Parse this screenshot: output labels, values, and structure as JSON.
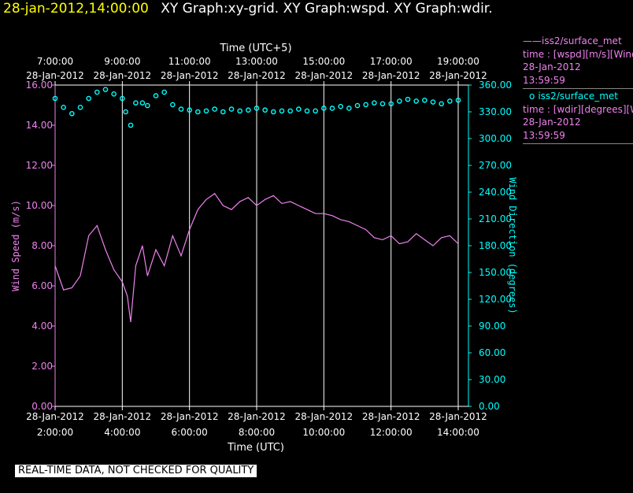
{
  "header": {
    "date": "28-jan-2012,14:00:00",
    "graphs": "XY Graph:xy-grid.  XY Graph:wspd.  XY Graph:wdir."
  },
  "legend": [
    {
      "marker": "——",
      "name": "iss2/surface_met",
      "desc": "time : [wspd][m/s][Wind",
      "date": "28-Jan-2012",
      "time": "13:59:59",
      "color": "#ee82ee"
    },
    {
      "marker": "o",
      "name": "iss2/surface_met",
      "desc": "time : [wdir][degrees][W",
      "date": "28-Jan-2012",
      "time": "13:59:59",
      "color": "#00ffff"
    }
  ],
  "notice": "REAL-TIME DATA, NOT CHECKED FOR QUALITY",
  "colors": {
    "wspd": "#ee82ee",
    "wdir": "#00ffff",
    "grid": "#ffffff",
    "header_date": "#ffff00"
  },
  "chart_data": {
    "type": "line",
    "top_axis_title": "Time (UTC+5)",
    "bottom_axis_title": "Time (UTC)",
    "ylabel_left": "Wind Speed (m/s)",
    "ylabel_right": "Wind Direction (degrees)",
    "x_ticks_bottom": [
      {
        "date": "28-Jan-2012",
        "time": "2:00:00"
      },
      {
        "date": "28-Jan-2012",
        "time": "4:00:00"
      },
      {
        "date": "28-Jan-2012",
        "time": "6:00:00"
      },
      {
        "date": "28-Jan-2012",
        "time": "8:00:00"
      },
      {
        "date": "28-Jan-2012",
        "time": "10:00:00"
      },
      {
        "date": "28-Jan-2012",
        "time": "12:00:00"
      },
      {
        "date": "28-Jan-2012",
        "time": "14:00:00"
      }
    ],
    "x_ticks_top": [
      {
        "date": "28-Jan-2012",
        "time": "7:00:00"
      },
      {
        "date": "28-Jan-2012",
        "time": "9:00:00"
      },
      {
        "date": "28-Jan-2012",
        "time": "11:00:00"
      },
      {
        "date": "28-Jan-2012",
        "time": "13:00:00"
      },
      {
        "date": "28-Jan-2012",
        "time": "15:00:00"
      },
      {
        "date": "28-Jan-2012",
        "time": "17:00:00"
      },
      {
        "date": "28-Jan-2012",
        "time": "19:00:00"
      }
    ],
    "xlim_utc_hours": [
      2,
      14
    ],
    "left_ticks": [
      "0.00",
      "2.00",
      "4.00",
      "6.00",
      "8.00",
      "10.00",
      "12.00",
      "14.00",
      "16.00"
    ],
    "left_ylim": [
      0,
      16
    ],
    "right_ticks": [
      "0.00",
      "30.00",
      "60.00",
      "90.00",
      "120.00",
      "150.00",
      "180.00",
      "210.00",
      "240.00",
      "270.00",
      "300.00",
      "330.00",
      "360.00"
    ],
    "right_ylim": [
      0,
      360
    ],
    "grid": "vertical lines at each x tick",
    "series": [
      {
        "name": "iss2/surface_met",
        "axis": "left",
        "style": "line",
        "x_utc_hours": [
          2.0,
          2.25,
          2.5,
          2.75,
          3.0,
          3.25,
          3.5,
          3.75,
          4.0,
          4.15,
          4.25,
          4.4,
          4.6,
          4.75,
          5.0,
          5.25,
          5.5,
          5.75,
          6.0,
          6.25,
          6.5,
          6.75,
          7.0,
          7.25,
          7.5,
          7.75,
          8.0,
          8.25,
          8.5,
          8.75,
          9.0,
          9.25,
          9.5,
          9.75,
          10.0,
          10.25,
          10.5,
          10.75,
          11.0,
          11.25,
          11.5,
          11.75,
          12.0,
          12.25,
          12.5,
          12.75,
          13.0,
          13.25,
          13.5,
          13.75,
          14.0
        ],
        "values": [
          7.0,
          5.8,
          5.9,
          6.5,
          8.5,
          9.0,
          7.8,
          6.8,
          6.2,
          5.5,
          4.2,
          7.0,
          8.0,
          6.5,
          7.8,
          7.0,
          8.5,
          7.5,
          8.8,
          9.8,
          10.3,
          10.6,
          10.0,
          9.8,
          10.2,
          10.4,
          10.0,
          10.3,
          10.5,
          10.1,
          10.2,
          10.0,
          9.8,
          9.6,
          9.6,
          9.5,
          9.3,
          9.2,
          9.0,
          8.8,
          8.4,
          8.3,
          8.5,
          8.1,
          8.2,
          8.6,
          8.3,
          8.0,
          8.4,
          8.5,
          8.1
        ]
      },
      {
        "name": "iss2/surface_met",
        "axis": "right",
        "style": "markers",
        "x_utc_hours": [
          2.0,
          2.25,
          2.5,
          2.75,
          3.0,
          3.25,
          3.5,
          3.75,
          4.0,
          4.1,
          4.25,
          4.4,
          4.6,
          4.75,
          5.0,
          5.25,
          5.5,
          5.75,
          6.0,
          6.25,
          6.5,
          6.75,
          7.0,
          7.25,
          7.5,
          7.75,
          8.0,
          8.25,
          8.5,
          8.75,
          9.0,
          9.25,
          9.5,
          9.75,
          10.0,
          10.25,
          10.5,
          10.75,
          11.0,
          11.25,
          11.5,
          11.75,
          12.0,
          12.25,
          12.5,
          12.75,
          13.0,
          13.25,
          13.5,
          13.75,
          14.0
        ],
        "values": [
          345,
          335,
          328,
          335,
          345,
          352,
          355,
          350,
          345,
          330,
          315,
          340,
          340,
          337,
          348,
          352,
          338,
          333,
          332,
          330,
          331,
          333,
          330,
          333,
          331,
          332,
          334,
          332,
          330,
          331,
          331,
          333,
          331,
          331,
          334,
          334,
          336,
          334,
          337,
          338,
          340,
          339,
          339,
          342,
          344,
          342,
          343,
          341,
          339,
          342,
          343
        ]
      }
    ]
  }
}
